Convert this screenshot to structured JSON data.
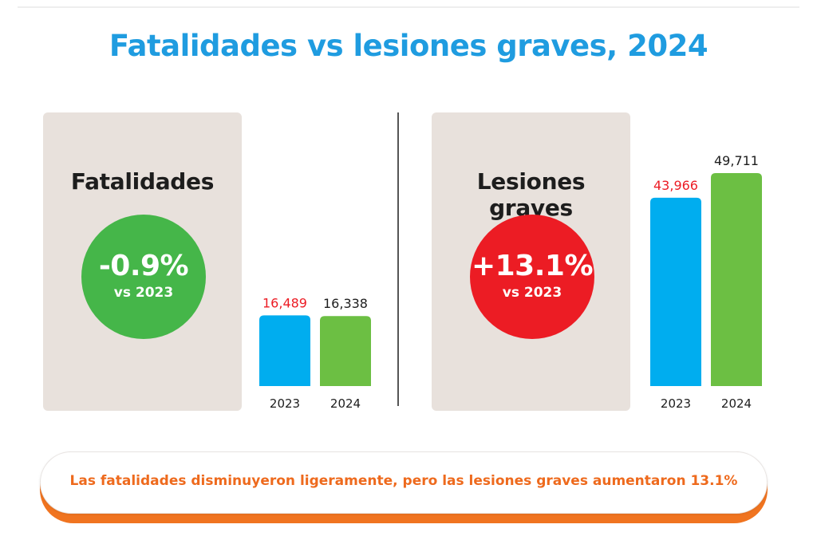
{
  "title": "Fatalidades vs lesiones graves, 2024",
  "colors": {
    "title": "#1f9ce0",
    "bar_2023": "#00adef",
    "bar_2024": "#6cbf43",
    "decrease": "#45b649",
    "increase": "#ec1c24",
    "callout": "#ee6a1d",
    "panel_bg": "#e8e1dc"
  },
  "panels": [
    {
      "title": "Fatalidades",
      "change": "-0.9%",
      "vs": "vs 2023",
      "circle_color": "#45b649"
    },
    {
      "title": "Lesiones graves",
      "change": "+13.1%",
      "vs": "vs 2023",
      "circle_color": "#ec1c24"
    }
  ],
  "chart_data": [
    {
      "type": "bar",
      "categories": [
        "2023",
        "2024"
      ],
      "values": [
        16489,
        16338
      ],
      "value_labels": [
        "16,489",
        "16,338"
      ],
      "label_colors": [
        "#ec1c24",
        "#1d1d1d"
      ],
      "bar_colors": [
        "#00adef",
        "#6cbf43"
      ],
      "ylim": [
        0,
        30000
      ]
    },
    {
      "type": "bar",
      "categories": [
        "2023",
        "2024"
      ],
      "values": [
        43966,
        49711
      ],
      "value_labels": [
        "43,966",
        "49,711"
      ],
      "label_colors": [
        "#ec1c24",
        "#1d1d1d"
      ],
      "bar_colors": [
        "#00adef",
        "#6cbf43"
      ],
      "ylim": [
        0,
        55000
      ]
    }
  ],
  "callout": "Las fatalidades disminuyeron ligeramente, pero las lesiones graves aumentaron 13.1%"
}
